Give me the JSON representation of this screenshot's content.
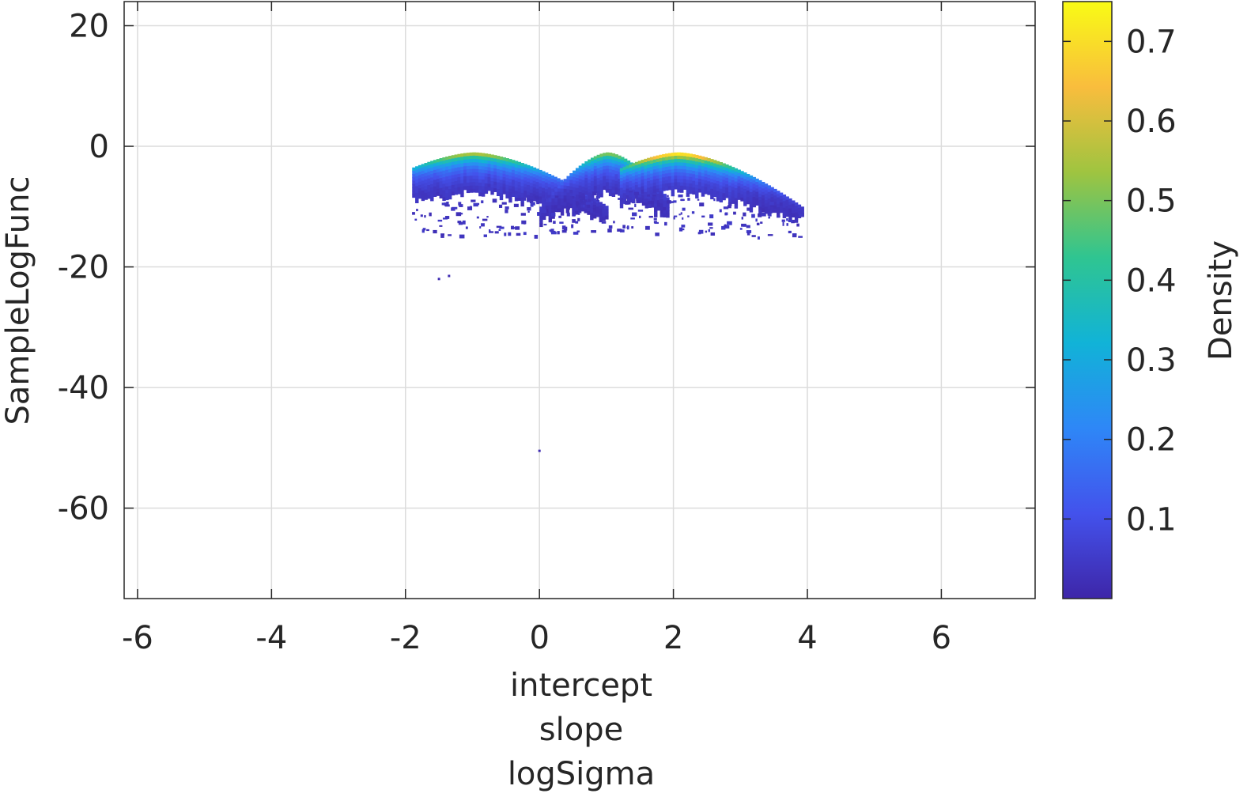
{
  "chart_data": {
    "type": "heatmap",
    "title": "",
    "xlabel": [
      "intercept",
      "slope",
      "logSigma"
    ],
    "ylabel": "SampleLogFunc",
    "xlim": [
      -6.2,
      7.4
    ],
    "ylim": [
      -75,
      24
    ],
    "xticks": [
      -6,
      -4,
      -2,
      0,
      2,
      4,
      6
    ],
    "yticks": [
      -60,
      -40,
      -20,
      0,
      20
    ],
    "grid": true,
    "colorbar": {
      "label": "Density",
      "range": [
        0,
        0.75
      ],
      "ticks": [
        0.1,
        0.2,
        0.3,
        0.4,
        0.5,
        0.6,
        0.7
      ],
      "colormap": "parula",
      "colors": [
        "#3e26a8",
        "#4352ec",
        "#2e87f7",
        "#11b3d7",
        "#2fc591",
        "#9fc440",
        "#f9bd3d",
        "#f9fb15"
      ]
    },
    "series": [
      {
        "center_x": -1.0,
        "range_x": [
          -1.9,
          1.0
        ],
        "peak_y": -1.0,
        "peak_density": 0.55
      },
      {
        "center_x": 1.0,
        "range_x": [
          0.0,
          1.9
        ],
        "peak_y": -1.0,
        "peak_density": 0.5
      },
      {
        "center_x": 2.05,
        "range_x": [
          1.2,
          3.9
        ],
        "peak_y": -1.0,
        "peak_density": 0.72
      }
    ],
    "outliers": [
      {
        "x": -1.5,
        "y": -22
      },
      {
        "x": -1.35,
        "y": -21.5
      },
      {
        "x": 0.0,
        "y": -50.5
      }
    ]
  }
}
